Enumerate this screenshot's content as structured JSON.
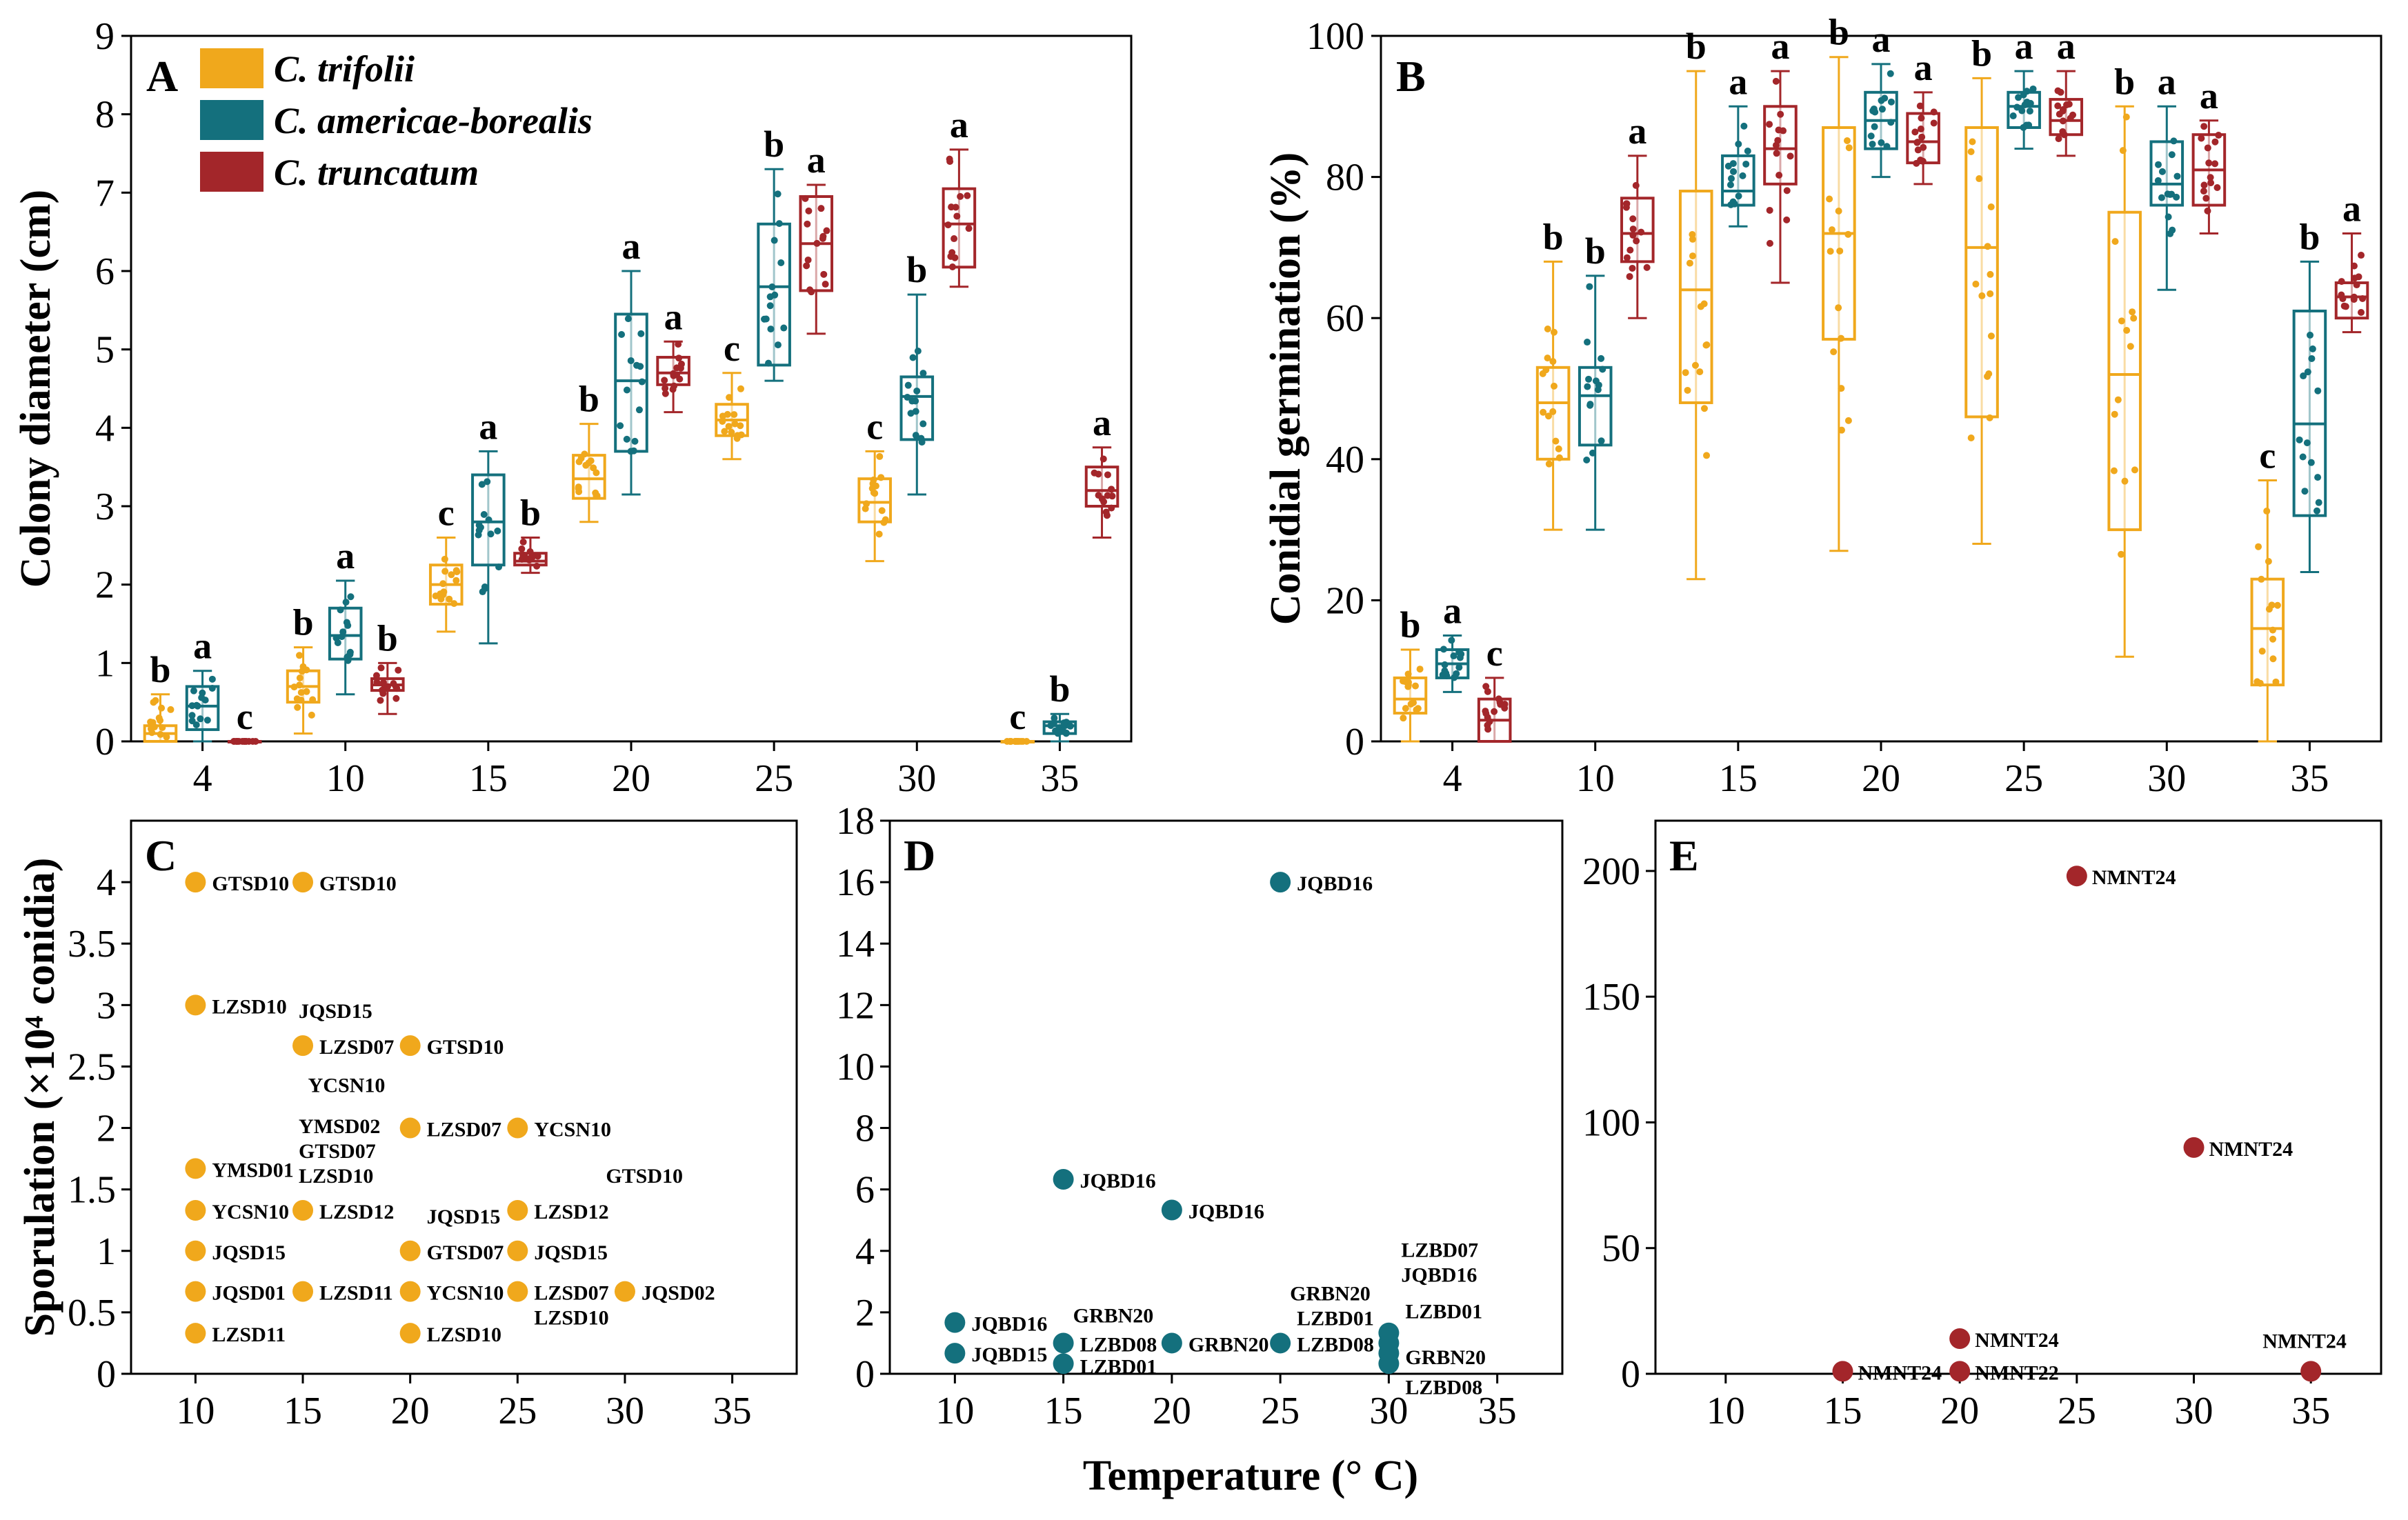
{
  "colors": {
    "C_trifolii": "#F0A81C",
    "C_americae_borealis": "#14707D",
    "C_truncatum": "#A3262A"
  },
  "legend": [
    "C. trifolii",
    "C. americae-borealis",
    "C. truncatum"
  ],
  "xlabel": "Temperature (° C)",
  "chart_data": [
    {
      "panel": "A",
      "type": "box",
      "ylabel": "Colony diameter (cm)",
      "ylim": [
        0,
        9
      ],
      "yticks": [
        0,
        1,
        2,
        3,
        4,
        5,
        6,
        7,
        8,
        9
      ],
      "categories": [
        "4",
        "10",
        "15",
        "20",
        "25",
        "30",
        "35"
      ],
      "series": [
        {
          "name": "C. trifolii",
          "boxes": [
            {
              "cat": "4",
              "min": 0,
              "q1": 0,
              "median": 0.1,
              "q3": 0.2,
              "max": 0.6,
              "letter": "b"
            },
            {
              "cat": "10",
              "min": 0.1,
              "q1": 0.5,
              "median": 0.7,
              "q3": 0.9,
              "max": 1.2,
              "letter": "b"
            },
            {
              "cat": "15",
              "min": 1.4,
              "q1": 1.75,
              "median": 2.0,
              "q3": 2.25,
              "max": 2.6,
              "letter": "c"
            },
            {
              "cat": "20",
              "min": 2.8,
              "q1": 3.1,
              "median": 3.35,
              "q3": 3.65,
              "max": 4.05,
              "letter": "b"
            },
            {
              "cat": "25",
              "min": 3.6,
              "q1": 3.9,
              "median": 4.1,
              "q3": 4.3,
              "max": 4.7,
              "letter": "c"
            },
            {
              "cat": "30",
              "min": 2.3,
              "q1": 2.8,
              "median": 3.05,
              "q3": 3.35,
              "max": 3.7,
              "letter": "c"
            },
            {
              "cat": "35",
              "min": 0,
              "q1": 0,
              "median": 0,
              "q3": 0,
              "max": 0,
              "letter": "c"
            }
          ]
        },
        {
          "name": "C. americae-borealis",
          "boxes": [
            {
              "cat": "4",
              "min": 0,
              "q1": 0.15,
              "median": 0.45,
              "q3": 0.7,
              "max": 0.9,
              "letter": "a"
            },
            {
              "cat": "10",
              "min": 0.6,
              "q1": 1.05,
              "median": 1.35,
              "q3": 1.7,
              "max": 2.05,
              "letter": "a"
            },
            {
              "cat": "15",
              "min": 1.25,
              "q1": 2.25,
              "median": 2.8,
              "q3": 3.4,
              "max": 3.7,
              "letter": "a"
            },
            {
              "cat": "20",
              "min": 3.15,
              "q1": 3.7,
              "median": 4.6,
              "q3": 5.45,
              "max": 6.0,
              "letter": "a"
            },
            {
              "cat": "25",
              "min": 4.6,
              "q1": 4.8,
              "median": 5.8,
              "q3": 6.6,
              "max": 7.3,
              "letter": "b"
            },
            {
              "cat": "30",
              "min": 3.15,
              "q1": 3.85,
              "median": 4.4,
              "q3": 4.65,
              "max": 5.7,
              "letter": "b"
            },
            {
              "cat": "35",
              "min": 0,
              "q1": 0.1,
              "median": 0.2,
              "q3": 0.25,
              "max": 0.35,
              "letter": "b"
            }
          ]
        },
        {
          "name": "C. truncatum",
          "boxes": [
            {
              "cat": "4",
              "min": 0,
              "q1": 0,
              "median": 0,
              "q3": 0,
              "max": 0,
              "letter": "c"
            },
            {
              "cat": "10",
              "min": 0.35,
              "q1": 0.65,
              "median": 0.72,
              "q3": 0.8,
              "max": 1.0,
              "letter": "b"
            },
            {
              "cat": "15",
              "min": 2.15,
              "q1": 2.25,
              "median": 2.3,
              "q3": 2.4,
              "max": 2.6,
              "letter": "b"
            },
            {
              "cat": "20",
              "min": 4.2,
              "q1": 4.55,
              "median": 4.7,
              "q3": 4.9,
              "max": 5.1,
              "letter": "a"
            },
            {
              "cat": "25",
              "min": 5.2,
              "q1": 5.75,
              "median": 6.35,
              "q3": 6.95,
              "max": 7.1,
              "letter": "a"
            },
            {
              "cat": "30",
              "min": 5.8,
              "q1": 6.05,
              "median": 6.6,
              "q3": 7.05,
              "max": 7.55,
              "letter": "a"
            },
            {
              "cat": "35",
              "min": 2.6,
              "q1": 3.0,
              "median": 3.2,
              "q3": 3.5,
              "max": 3.75,
              "letter": "a"
            }
          ]
        }
      ]
    },
    {
      "panel": "B",
      "type": "box",
      "ylabel": "Conidial germination (%)",
      "ylim": [
        0,
        100
      ],
      "yticks": [
        0,
        20,
        40,
        60,
        80,
        100
      ],
      "categories": [
        "4",
        "10",
        "15",
        "20",
        "25",
        "30",
        "35"
      ],
      "series": [
        {
          "name": "C. trifolii",
          "boxes": [
            {
              "cat": "4",
              "min": 0,
              "q1": 4,
              "median": 6,
              "q3": 9,
              "max": 13,
              "letter": "b"
            },
            {
              "cat": "10",
              "min": 30,
              "q1": 40,
              "median": 48,
              "q3": 53,
              "max": 68,
              "letter": "b"
            },
            {
              "cat": "15",
              "min": 23,
              "q1": 48,
              "median": 64,
              "q3": 78,
              "max": 95,
              "letter": "b"
            },
            {
              "cat": "20",
              "min": 27,
              "q1": 57,
              "median": 72,
              "q3": 87,
              "max": 97,
              "letter": "b"
            },
            {
              "cat": "25",
              "min": 28,
              "q1": 46,
              "median": 70,
              "q3": 87,
              "max": 94,
              "letter": "b"
            },
            {
              "cat": "30",
              "min": 12,
              "q1": 30,
              "median": 52,
              "q3": 75,
              "max": 90,
              "letter": "b"
            },
            {
              "cat": "35",
              "min": 0,
              "q1": 8,
              "median": 16,
              "q3": 23,
              "max": 37,
              "letter": "c"
            }
          ]
        },
        {
          "name": "C. americae-borealis",
          "boxes": [
            {
              "cat": "4",
              "min": 7,
              "q1": 9,
              "median": 11,
              "q3": 13,
              "max": 15,
              "letter": "a"
            },
            {
              "cat": "10",
              "min": 30,
              "q1": 42,
              "median": 49,
              "q3": 53,
              "max": 66,
              "letter": "b"
            },
            {
              "cat": "15",
              "min": 73,
              "q1": 76,
              "median": 78,
              "q3": 83,
              "max": 90,
              "letter": "a"
            },
            {
              "cat": "20",
              "min": 80,
              "q1": 84,
              "median": 88,
              "q3": 92,
              "max": 96,
              "letter": "a"
            },
            {
              "cat": "25",
              "min": 84,
              "q1": 87,
              "median": 90,
              "q3": 92,
              "max": 95,
              "letter": "a"
            },
            {
              "cat": "30",
              "min": 64,
              "q1": 76,
              "median": 79,
              "q3": 85,
              "max": 90,
              "letter": "a"
            },
            {
              "cat": "35",
              "min": 24,
              "q1": 32,
              "median": 45,
              "q3": 61,
              "max": 68,
              "letter": "b"
            }
          ]
        },
        {
          "name": "C. truncatum",
          "boxes": [
            {
              "cat": "4",
              "min": 0,
              "q1": 0,
              "median": 3,
              "q3": 6,
              "max": 9,
              "letter": "c"
            },
            {
              "cat": "10",
              "min": 60,
              "q1": 68,
              "median": 72,
              "q3": 77,
              "max": 83,
              "letter": "a"
            },
            {
              "cat": "15",
              "min": 65,
              "q1": 79,
              "median": 84,
              "q3": 90,
              "max": 95,
              "letter": "a"
            },
            {
              "cat": "20",
              "min": 79,
              "q1": 82,
              "median": 85,
              "q3": 89,
              "max": 92,
              "letter": "a"
            },
            {
              "cat": "25",
              "min": 83,
              "q1": 86,
              "median": 88,
              "q3": 91,
              "max": 95,
              "letter": "a"
            },
            {
              "cat": "30",
              "min": 72,
              "q1": 76,
              "median": 81,
              "q3": 86,
              "max": 88,
              "letter": "a"
            },
            {
              "cat": "35",
              "min": 58,
              "q1": 60,
              "median": 63,
              "q3": 65,
              "max": 72,
              "letter": "a"
            }
          ]
        }
      ]
    },
    {
      "panel": "C",
      "type": "scatter",
      "series_name": "C. trifolii",
      "ylabel": "Sporulation (×10⁴ conidia)",
      "xlim": [
        7,
        38
      ],
      "xticks": [
        10,
        15,
        20,
        25,
        30,
        35
      ],
      "ylim": [
        0,
        4.5
      ],
      "yticks": [
        0,
        0.5,
        1,
        1.5,
        2,
        2.5,
        3,
        3.5,
        4
      ],
      "points": [
        {
          "x": 10,
          "y": 4.0,
          "label": "GTSD10"
        },
        {
          "x": 15,
          "y": 4.0,
          "label": "GTSD10"
        },
        {
          "x": 10,
          "y": 3.0,
          "label": "LZSD10"
        },
        {
          "x": 15,
          "y": 2.67,
          "label": "JQSD15"
        },
        {
          "x": 15,
          "y": 2.67,
          "label": "LZSD07"
        },
        {
          "x": 20,
          "y": 2.67,
          "label": "GTSD10"
        },
        {
          "x": 20,
          "y": 2.0,
          "label": "YCSN10"
        },
        {
          "x": 20,
          "y": 2.0,
          "label": "LZSD07"
        },
        {
          "x": 25,
          "y": 2.0,
          "label": "YCSN10"
        },
        {
          "x": 10,
          "y": 1.67,
          "label": "YMSD01"
        },
        {
          "x": 15,
          "y": 1.33,
          "label": "YMSD02"
        },
        {
          "x": 15,
          "y": 1.33,
          "label": "GTSD07"
        },
        {
          "x": 15,
          "y": 1.33,
          "label": "LZSD10"
        },
        {
          "x": 15,
          "y": 1.33,
          "label": "LZSD12"
        },
        {
          "x": 10,
          "y": 1.33,
          "label": "YCSN10"
        },
        {
          "x": 25,
          "y": 1.33,
          "label": "GTSD10"
        },
        {
          "x": 25,
          "y": 1.33,
          "label": "LZSD12"
        },
        {
          "x": 20,
          "y": 1.0,
          "label": "JQSD15"
        },
        {
          "x": 20,
          "y": 1.0,
          "label": "GTSD07"
        },
        {
          "x": 10,
          "y": 1.0,
          "label": "JQSD15"
        },
        {
          "x": 25,
          "y": 1.0,
          "label": "JQSD15"
        },
        {
          "x": 10,
          "y": 0.67,
          "label": "JQSD01"
        },
        {
          "x": 15,
          "y": 0.67,
          "label": "LZSD11"
        },
        {
          "x": 20,
          "y": 0.67,
          "label": "YCSN10"
        },
        {
          "x": 25,
          "y": 0.67,
          "label": "LZSD07"
        },
        {
          "x": 25,
          "y": 0.67,
          "label": "LZSD10"
        },
        {
          "x": 30,
          "y": 0.67,
          "label": "JQSD02"
        },
        {
          "x": 10,
          "y": 0.33,
          "label": "LZSD11"
        },
        {
          "x": 20,
          "y": 0.33,
          "label": "LZSD10"
        }
      ]
    },
    {
      "panel": "D",
      "type": "scatter",
      "series_name": "C. americae-borealis",
      "xlim": [
        7,
        38
      ],
      "xticks": [
        10,
        15,
        20,
        25,
        30,
        35
      ],
      "ylim": [
        0,
        18
      ],
      "yticks": [
        0,
        2,
        4,
        6,
        8,
        10,
        12,
        14,
        16,
        18
      ],
      "points": [
        {
          "x": 25,
          "y": 16,
          "label": "JQBD16"
        },
        {
          "x": 15,
          "y": 6.33,
          "label": "JQBD16"
        },
        {
          "x": 20,
          "y": 5.33,
          "label": "JQBD16"
        },
        {
          "x": 10,
          "y": 1.67,
          "label": "JQBD16"
        },
        {
          "x": 10,
          "y": 0.67,
          "label": "JQBD15"
        },
        {
          "x": 15,
          "y": 1.0,
          "label": "GRBN20"
        },
        {
          "x": 15,
          "y": 1.0,
          "label": "LZBD08"
        },
        {
          "x": 15,
          "y": 0.33,
          "label": "LZBD01"
        },
        {
          "x": 20,
          "y": 1.0,
          "label": "GRBN20"
        },
        {
          "x": 25,
          "y": 1.0,
          "label": "GRBN20"
        },
        {
          "x": 25,
          "y": 1.0,
          "label": "LZBD01"
        },
        {
          "x": 25,
          "y": 1.0,
          "label": "LZBD08"
        },
        {
          "x": 30,
          "y": 1.33,
          "label": "LZBD07"
        },
        {
          "x": 30,
          "y": 1.33,
          "label": "JQBD16"
        },
        {
          "x": 30,
          "y": 1.0,
          "label": "LZBD01"
        },
        {
          "x": 30,
          "y": 0.67,
          "label": "GRBN20"
        },
        {
          "x": 30,
          "y": 0.33,
          "label": "LZBD08"
        }
      ]
    },
    {
      "panel": "E",
      "type": "scatter",
      "series_name": "C. truncatum",
      "xlim": [
        7,
        38
      ],
      "xticks": [
        10,
        15,
        20,
        25,
        30,
        35
      ],
      "ylim": [
        0,
        220
      ],
      "yticks": [
        0,
        50,
        100,
        150,
        200
      ],
      "points": [
        {
          "x": 25,
          "y": 198,
          "label": "NMNT24"
        },
        {
          "x": 30,
          "y": 90,
          "label": "NMNT24"
        },
        {
          "x": 20,
          "y": 14,
          "label": "NMNT24"
        },
        {
          "x": 15,
          "y": 1,
          "label": "NMNT24"
        },
        {
          "x": 20,
          "y": 1,
          "label": "NMNT22"
        },
        {
          "x": 35,
          "y": 1,
          "label": "NMNT24"
        }
      ]
    }
  ]
}
